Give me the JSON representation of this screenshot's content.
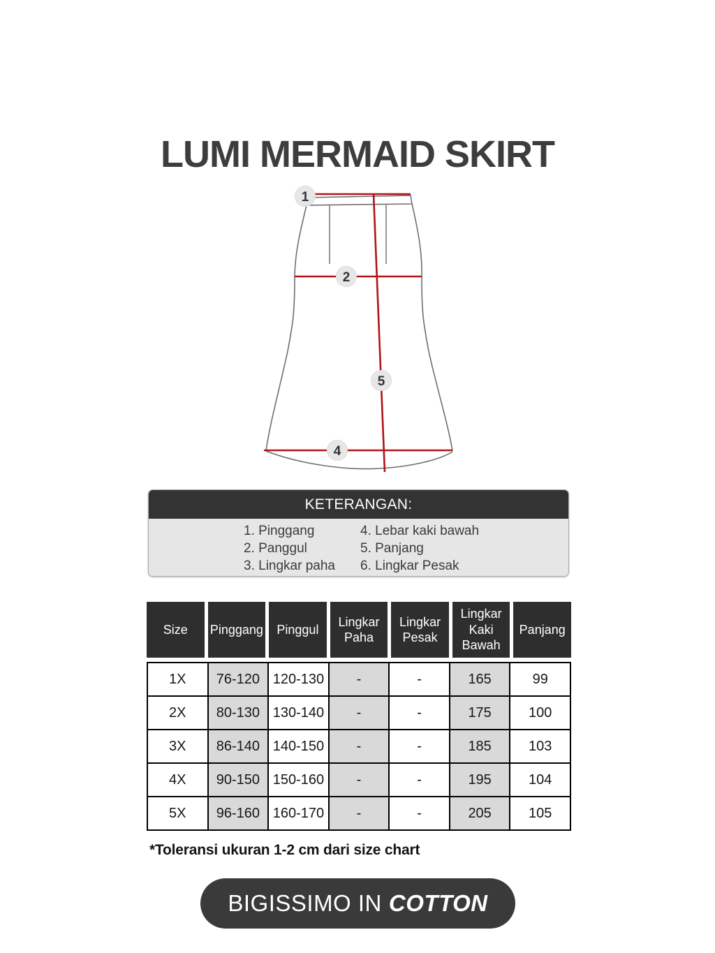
{
  "page": {
    "title": "LUMI MERMAID SKIRT",
    "footer_note": "*Toleransi ukuran 1-2 cm dari size chart",
    "brand_badge": {
      "prefix": "BIGISSIMO IN",
      "emphasis": "COTTON"
    }
  },
  "diagram": {
    "badges": [
      {
        "label": "1"
      },
      {
        "label": "2"
      },
      {
        "label": "5"
      },
      {
        "label": "4"
      }
    ]
  },
  "keterangan": {
    "title": "KETERANGAN:",
    "items_left": [
      "1. Pinggang",
      "2. Panggul",
      "3. Lingkar paha"
    ],
    "items_right": [
      "4. Lebar kaki bawah",
      "5. Panjang",
      "6. Lingkar Pesak"
    ]
  },
  "size_table": {
    "columns": [
      "Size",
      "Pinggang",
      "Pinggul",
      "Lingkar Paha",
      "Lingkar Pesak",
      "Lingkar Kaki Bawah",
      "Panjang"
    ],
    "shaded_columns": [
      1,
      3,
      5
    ],
    "rows": [
      [
        "1X",
        "76-120",
        "120-130",
        "-",
        "-",
        "165",
        "99"
      ],
      [
        "2X",
        "80-130",
        "130-140",
        "-",
        "-",
        "175",
        "100"
      ],
      [
        "3X",
        "86-140",
        "140-150",
        "-",
        "-",
        "185",
        "103"
      ],
      [
        "4X",
        "90-150",
        "150-160",
        "-",
        "-",
        "195",
        "104"
      ],
      [
        "5X",
        "96-160",
        "160-170",
        "-",
        "-",
        "205",
        "105"
      ]
    ]
  },
  "colors": {
    "accent_red": "#b01418",
    "header_dark": "#2e2e2e",
    "legend_header": "#333333",
    "legend_body": "#e7e6e6",
    "shaded_cell": "#d9d9d9",
    "badge_fill": "#e8e7e7",
    "title_color": "#3d3d3d",
    "pill_dark": "#3a3a3a"
  }
}
